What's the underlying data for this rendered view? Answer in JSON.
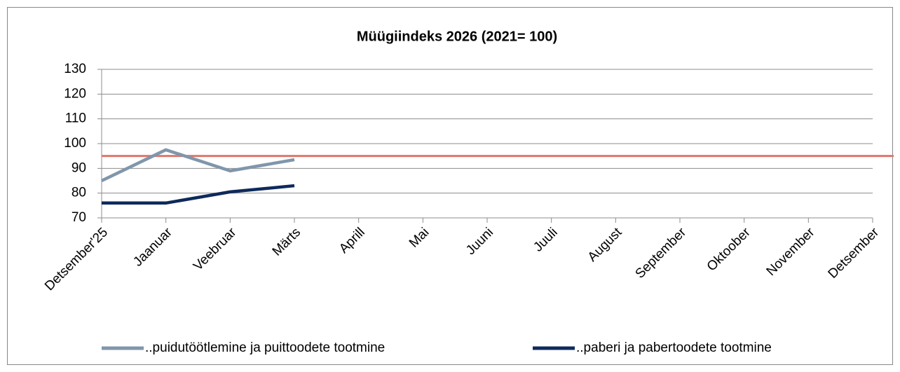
{
  "chart_data": {
    "type": "line",
    "title": "Müügiindeks  2026  (2021= 100)",
    "categories": [
      "Detsember'25",
      "Jaanuar",
      "Veebruar",
      "Märts",
      "Aprill",
      "Mai",
      "Juuni",
      "Juuli",
      "August",
      "September",
      "Oktoober",
      "November",
      "Detsember"
    ],
    "series": [
      {
        "name": "..puidutöötlemine ja puittoodete tootmine",
        "color": "#8096ab",
        "values": [
          85,
          97.5,
          89,
          93.5,
          null,
          null,
          null,
          null,
          null,
          null,
          null,
          null,
          null
        ]
      },
      {
        "name": "..paberi ja pabertoodete tootmine",
        "color": "#0e2a5c",
        "values": [
          76,
          76,
          80.5,
          83,
          null,
          null,
          null,
          null,
          null,
          null,
          null,
          null,
          null
        ]
      }
    ],
    "reference_line": {
      "value": 95,
      "color": "#e0766b"
    },
    "ylim": [
      70,
      130
    ],
    "yticks": [
      70,
      80,
      90,
      100,
      110,
      120,
      130
    ],
    "grid": true,
    "legend": "bottom"
  }
}
